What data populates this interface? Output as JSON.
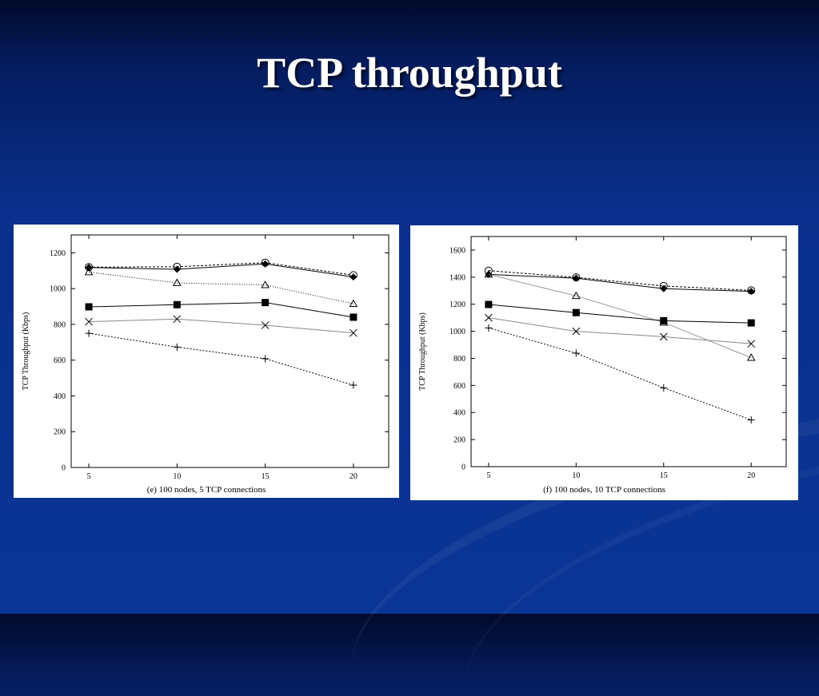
{
  "slide": {
    "title": "TCP throughput"
  },
  "chart_data": [
    {
      "type": "line",
      "caption": "(e) 100 nodes, 5 TCP connections",
      "ylabel": "TCP Throughput (Kbps)",
      "xlabel": "",
      "x": [
        5,
        10,
        15,
        20
      ],
      "xlim": [
        4,
        22
      ],
      "ylim": [
        0,
        1300
      ],
      "yticks": [
        0,
        200,
        400,
        600,
        800,
        1000,
        1200
      ],
      "grid": false,
      "series": [
        {
          "marker": "circle",
          "dash": "3,2",
          "color": "#000000",
          "values": [
            1120,
            1122,
            1145,
            1075
          ]
        },
        {
          "marker": "diamond",
          "dash": "",
          "color": "#000000",
          "values": [
            1118,
            1108,
            1138,
            1065
          ]
        },
        {
          "marker": "triangle",
          "dash": "1,2",
          "color": "#000000",
          "values": [
            1092,
            1032,
            1020,
            915
          ]
        },
        {
          "marker": "square",
          "dash": "",
          "color": "#000000",
          "values": [
            898,
            910,
            922,
            840
          ]
        },
        {
          "marker": "cross",
          "dash": "",
          "color": "#888888",
          "values": [
            815,
            830,
            795,
            752
          ]
        },
        {
          "marker": "plus",
          "dash": "2,2",
          "color": "#000000",
          "values": [
            750,
            673,
            608,
            460
          ]
        }
      ]
    },
    {
      "type": "line",
      "caption": "(f) 100 nodes, 10 TCP connections",
      "ylabel": "TCP Throughput (Kbps)",
      "xlabel": "",
      "x": [
        5,
        10,
        15,
        20
      ],
      "xlim": [
        4,
        22
      ],
      "ylim": [
        0,
        1700
      ],
      "yticks": [
        0,
        200,
        400,
        600,
        800,
        1000,
        1200,
        1400,
        1600
      ],
      "grid": false,
      "series": [
        {
          "marker": "circle",
          "dash": "3,2",
          "color": "#000000",
          "values": [
            1448,
            1398,
            1335,
            1302
          ]
        },
        {
          "marker": "diamond",
          "dash": "",
          "color": "#000000",
          "values": [
            1420,
            1392,
            1315,
            1295
          ]
        },
        {
          "marker": "triangle",
          "dash": "",
          "color": "#999999",
          "values": [
            1420,
            1262,
            1065,
            805
          ]
        },
        {
          "marker": "square",
          "dash": "",
          "color": "#000000",
          "values": [
            1198,
            1138,
            1078,
            1062
          ]
        },
        {
          "marker": "cross",
          "dash": "",
          "color": "#888888",
          "values": [
            1100,
            1000,
            960,
            908
          ]
        },
        {
          "marker": "plus",
          "dash": "2,2",
          "color": "#000000",
          "values": [
            1025,
            838,
            582,
            345
          ]
        }
      ]
    }
  ]
}
